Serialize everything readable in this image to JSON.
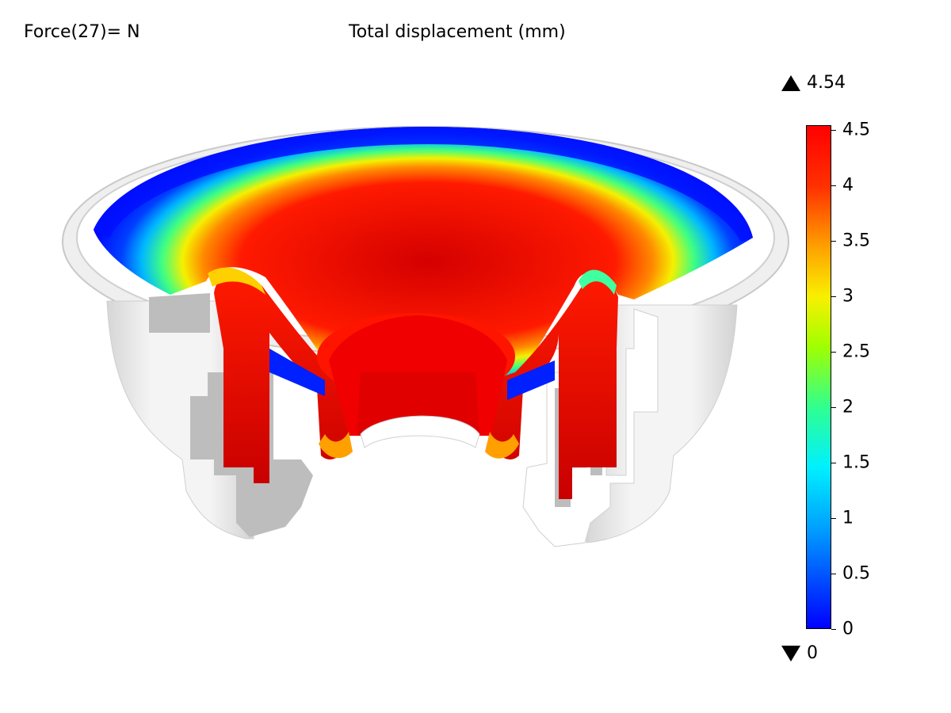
{
  "header": {
    "force_label": "Force(27)= N",
    "title": "Total displacement (mm)"
  },
  "legend": {
    "max_value": "4.54",
    "min_value": "0",
    "ticks": [
      {
        "value": 4.5,
        "label": "4.5"
      },
      {
        "value": 4,
        "label": "4"
      },
      {
        "value": 3.5,
        "label": "3.5"
      },
      {
        "value": 3,
        "label": "3"
      },
      {
        "value": 2.5,
        "label": "2.5"
      },
      {
        "value": 2,
        "label": "2"
      },
      {
        "value": 1.5,
        "label": "1.5"
      },
      {
        "value": 1,
        "label": "1"
      },
      {
        "value": 0.5,
        "label": "0.5"
      },
      {
        "value": 0,
        "label": "0"
      }
    ],
    "range": [
      0,
      4.54
    ],
    "colormap": [
      "#0000ff",
      "#00f0ff",
      "#a0ff00",
      "#f8f000",
      "#ff0000"
    ]
  },
  "model": {
    "colors": {
      "housing": "#e6e6e6",
      "cut": "#bdbdbd",
      "high": "#ff0000",
      "low": "#0000ff"
    }
  }
}
